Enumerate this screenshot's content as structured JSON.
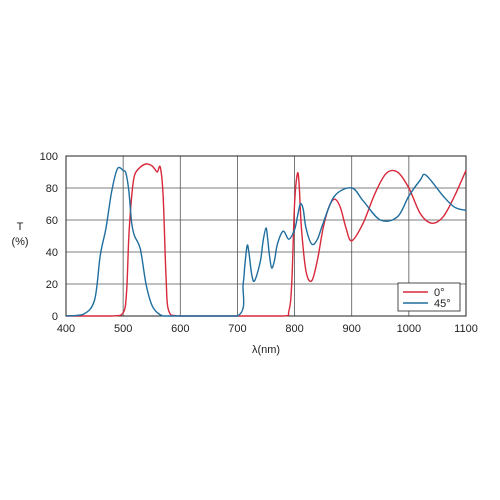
{
  "chart_data": {
    "type": "line",
    "xlabel": "λ(nm)",
    "ylabel": "T",
    "ylabel_unit": "(%)",
    "xlim": [
      400,
      1100
    ],
    "ylim": [
      0,
      100
    ],
    "xticks": [
      400,
      500,
      600,
      700,
      800,
      900,
      1000,
      1100
    ],
    "yticks": [
      0,
      20,
      40,
      60,
      80,
      100
    ],
    "grid": true,
    "legend_position": "bottom-right",
    "series": [
      {
        "name": "0°",
        "color": "#d8283a",
        "x": [
          400,
          480,
          500,
          506,
          510,
          515,
          520,
          530,
          540,
          550,
          555,
          560,
          565,
          570,
          575,
          580,
          600,
          700,
          780,
          790,
          795,
          800,
          805,
          808,
          812,
          820,
          830,
          840,
          850,
          860,
          870,
          880,
          890,
          900,
          920,
          940,
          960,
          980,
          1000,
          1020,
          1040,
          1060,
          1080,
          1100
        ],
        "values": [
          0,
          0,
          2,
          15,
          50,
          75,
          88,
          93,
          95,
          94,
          92,
          90,
          93,
          75,
          25,
          3,
          0,
          0,
          0,
          3,
          20,
          70,
          89,
          82,
          55,
          28,
          22,
          35,
          55,
          68,
          73,
          68,
          55,
          47,
          58,
          76,
          89,
          90,
          80,
          64,
          58,
          62,
          75,
          91
        ]
      },
      {
        "name": "45°",
        "color": "#1f6e9e",
        "x": [
          400,
          430,
          450,
          460,
          470,
          480,
          490,
          500,
          505,
          510,
          515,
          520,
          530,
          540,
          550,
          560,
          570,
          580,
          600,
          700,
          710,
          713,
          717,
          720,
          725,
          730,
          740,
          745,
          750,
          753,
          756,
          760,
          765,
          770,
          780,
          790,
          800,
          805,
          810,
          815,
          820,
          830,
          840,
          850,
          870,
          900,
          920,
          950,
          980,
          1000,
          1020,
          1030,
          1060,
          1080,
          1100
        ],
        "values": [
          0,
          1,
          10,
          38,
          55,
          78,
          92,
          91,
          89,
          78,
          58,
          50,
          42,
          20,
          7,
          2,
          0,
          0,
          0,
          0,
          20,
          32,
          44,
          40,
          26,
          22,
          34,
          47,
          55,
          48,
          38,
          30,
          35,
          45,
          53,
          48,
          54,
          62,
          70,
          67,
          55,
          45,
          48,
          58,
          75,
          80,
          72,
          60,
          62,
          75,
          85,
          88,
          75,
          68,
          66
        ]
      }
    ]
  }
}
